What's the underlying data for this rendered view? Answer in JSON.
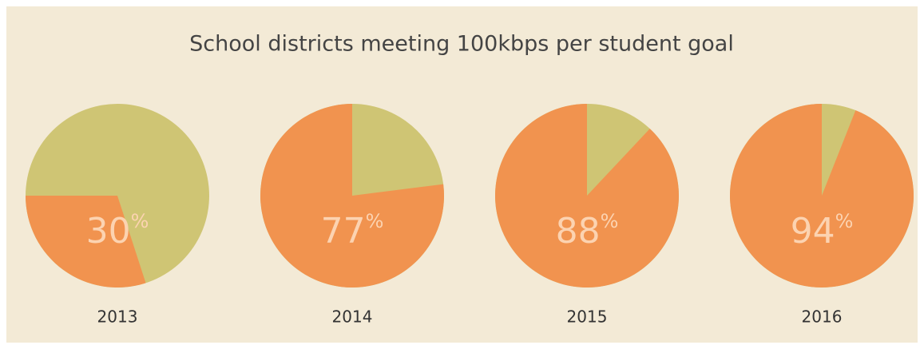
{
  "chart_data": {
    "type": "pie",
    "title": "School districts meeting 100kbps per student goal",
    "categories": [
      "2013",
      "2014",
      "2015",
      "2016"
    ],
    "values": [
      30,
      77,
      88,
      94
    ],
    "value_suffix": "%",
    "color": "#f1934f",
    "remainder_color": "#cfc574"
  }
}
